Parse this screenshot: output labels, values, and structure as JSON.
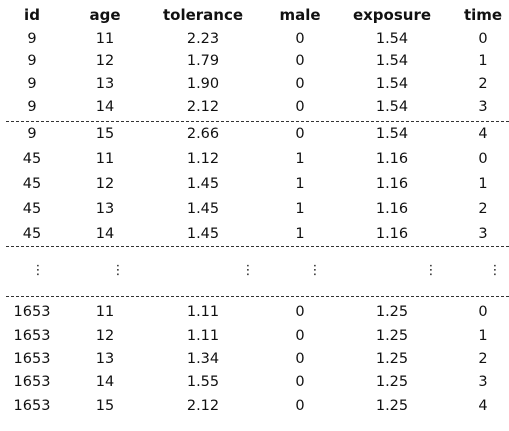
{
  "table": {
    "headers": [
      "id",
      "age",
      "tolerance",
      "male",
      "exposure",
      "time"
    ],
    "groups": [
      [
        [
          "9",
          "11",
          "2.23",
          "0",
          "1.54",
          "0"
        ],
        [
          "9",
          "12",
          "1.79",
          "0",
          "1.54",
          "1"
        ],
        [
          "9",
          "13",
          "1.90",
          "0",
          "1.54",
          "2"
        ],
        [
          "9",
          "14",
          "2.12",
          "0",
          "1.54",
          "3"
        ]
      ],
      [
        [
          "9",
          "15",
          "2.66",
          "0",
          "1.54",
          "4"
        ],
        [
          "45",
          "11",
          "1.12",
          "1",
          "1.16",
          "0"
        ],
        [
          "45",
          "12",
          "1.45",
          "1",
          "1.16",
          "1"
        ],
        [
          "45",
          "13",
          "1.45",
          "1",
          "1.16",
          "2"
        ],
        [
          "45",
          "14",
          "1.45",
          "1",
          "1.16",
          "3"
        ]
      ],
      [
        [
          "⋮",
          "⋮",
          "⋮",
          "⋮",
          "⋮",
          "⋮"
        ]
      ],
      [
        [
          "1653",
          "11",
          "1.11",
          "0",
          "1.25",
          "0"
        ],
        [
          "1653",
          "12",
          "1.11",
          "0",
          "1.25",
          "1"
        ],
        [
          "1653",
          "13",
          "1.34",
          "0",
          "1.25",
          "2"
        ],
        [
          "1653",
          "14",
          "1.55",
          "0",
          "1.25",
          "3"
        ],
        [
          "1653",
          "15",
          "2.12",
          "0",
          "1.25",
          "4"
        ]
      ]
    ]
  }
}
